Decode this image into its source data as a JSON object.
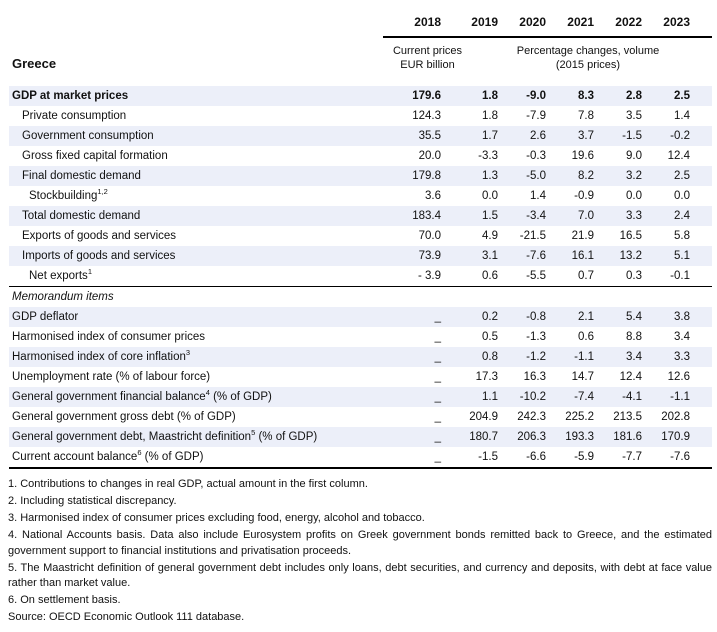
{
  "country_title": "Greece",
  "header": {
    "years": [
      "2018",
      "2019",
      "2020",
      "2021",
      "2022",
      "2023"
    ],
    "unit_first_col_line1": "Current prices",
    "unit_first_col_line2": "EUR billion",
    "unit_other_cols_line1": "Percentage changes, volume",
    "unit_other_cols_line2": "(2015 prices)"
  },
  "colors": {
    "row_shade": "#ECEFF9",
    "rule": "#000000"
  },
  "chart_data": {
    "type": "table",
    "title": "Greece",
    "columns": [
      "2018",
      "2019",
      "2020",
      "2021",
      "2022",
      "2023"
    ],
    "column_units": [
      "Current prices EUR billion",
      "Percentage changes, volume (2015 prices)"
    ],
    "rows": [
      {
        "label": "GDP at market prices",
        "sup": "",
        "label_after": "",
        "bold": true,
        "italic": false,
        "indent": 0,
        "shaded": true,
        "values": [
          "179.6",
          "1.8",
          "-9.0",
          "8.3",
          "2.8",
          "2.5"
        ]
      },
      {
        "label": "Private consumption",
        "sup": "",
        "label_after": "",
        "bold": false,
        "italic": false,
        "indent": 1,
        "shaded": false,
        "values": [
          "124.3",
          "1.8",
          "-7.9",
          "7.8",
          "3.5",
          "1.4"
        ]
      },
      {
        "label": "Government consumption",
        "sup": "",
        "label_after": "",
        "bold": false,
        "italic": false,
        "indent": 1,
        "shaded": true,
        "values": [
          "35.5",
          "1.7",
          "2.6",
          "3.7",
          "-1.5",
          "-0.2"
        ]
      },
      {
        "label": "Gross fixed capital formation",
        "sup": "",
        "label_after": "",
        "bold": false,
        "italic": false,
        "indent": 1,
        "shaded": false,
        "values": [
          "20.0",
          "-3.3",
          "-0.3",
          "19.6",
          "9.0",
          "12.4"
        ]
      },
      {
        "label": "Final domestic demand",
        "sup": "",
        "label_after": "",
        "bold": false,
        "italic": false,
        "indent": 1,
        "shaded": true,
        "values": [
          "179.8",
          "1.3",
          "-5.0",
          "8.2",
          "3.2",
          "2.5"
        ]
      },
      {
        "label": "Stockbuilding",
        "sup": "1,2",
        "label_after": "",
        "bold": false,
        "italic": false,
        "indent": 2,
        "shaded": false,
        "values": [
          "3.6",
          "0.0",
          "1.4",
          "-0.9",
          "0.0",
          "0.0"
        ]
      },
      {
        "label": "Total domestic demand",
        "sup": "",
        "label_after": "",
        "bold": false,
        "italic": false,
        "indent": 1,
        "shaded": true,
        "values": [
          "183.4",
          "1.5",
          "-3.4",
          "7.0",
          "3.3",
          "2.4"
        ]
      },
      {
        "label": "Exports of goods and services",
        "sup": "",
        "label_after": "",
        "bold": false,
        "italic": false,
        "indent": 1,
        "shaded": false,
        "values": [
          "70.0",
          "4.9",
          "-21.5",
          "21.9",
          "16.5",
          "5.8"
        ]
      },
      {
        "label": "Imports of goods and services",
        "sup": "",
        "label_after": "",
        "bold": false,
        "italic": false,
        "indent": 1,
        "shaded": true,
        "values": [
          "73.9",
          "3.1",
          "-7.6",
          "16.1",
          "13.2",
          "5.1"
        ]
      },
      {
        "label": "Net exports",
        "sup": "1",
        "label_after": "",
        "bold": false,
        "italic": false,
        "indent": 2,
        "shaded": false,
        "values": [
          "- 3.9",
          "0.6",
          "-5.5",
          "0.7",
          "0.3",
          "-0.1"
        ]
      }
    ],
    "memo_rows": [
      {
        "label": "Memorandum items",
        "sup": "",
        "label_after": "",
        "bold": false,
        "italic": true,
        "indent": 0,
        "shaded": false,
        "values": [
          "",
          "",
          "",
          "",
          "",
          ""
        ]
      },
      {
        "label": "GDP deflator",
        "sup": "",
        "label_after": "",
        "bold": false,
        "italic": false,
        "indent": 0,
        "shaded": true,
        "values": [
          "_",
          "0.2",
          "-0.8",
          "2.1",
          "5.4",
          "3.8"
        ]
      },
      {
        "label": "Harmonised index of consumer prices",
        "sup": "",
        "label_after": "",
        "bold": false,
        "italic": false,
        "indent": 0,
        "shaded": false,
        "values": [
          "_",
          "0.5",
          "-1.3",
          "0.6",
          "8.8",
          "3.4"
        ]
      },
      {
        "label": "Harmonised index of core inflation",
        "sup": "3",
        "label_after": "",
        "bold": false,
        "italic": false,
        "indent": 0,
        "shaded": true,
        "values": [
          "_",
          "0.8",
          "-1.2",
          "-1.1",
          "3.4",
          "3.3"
        ]
      },
      {
        "label": "Unemployment rate (% of labour force)",
        "sup": "",
        "label_after": "",
        "bold": false,
        "italic": false,
        "indent": 0,
        "shaded": false,
        "values": [
          "_",
          "17.3",
          "16.3",
          "14.7",
          "12.4",
          "12.6"
        ]
      },
      {
        "label": "General government financial balance",
        "sup": "4",
        "label_after": " (% of GDP)",
        "bold": false,
        "italic": false,
        "indent": 0,
        "shaded": true,
        "values": [
          "_",
          "1.1",
          "-10.2",
          "-7.4",
          "-4.1",
          "-1.1"
        ]
      },
      {
        "label": "General government gross debt (% of GDP)",
        "sup": "",
        "label_after": "",
        "bold": false,
        "italic": false,
        "indent": 0,
        "shaded": false,
        "values": [
          "_",
          "204.9",
          "242.3",
          "225.2",
          "213.5",
          "202.8"
        ]
      },
      {
        "label": "General government debt, Maastricht definition",
        "sup": "5",
        "label_after": " (% of GDP)",
        "bold": false,
        "italic": false,
        "indent": 0,
        "shaded": true,
        "values": [
          "_",
          "180.7",
          "206.3",
          "193.3",
          "181.6",
          "170.9"
        ]
      },
      {
        "label": "Current account balance",
        "sup": "6",
        "label_after": " (% of GDP)",
        "bold": false,
        "italic": false,
        "indent": 0,
        "shaded": false,
        "values": [
          "_",
          "-1.5",
          "-6.6",
          "-5.9",
          "-7.7",
          "-7.6"
        ]
      }
    ]
  },
  "footnotes": [
    "1. Contributions to changes in real GDP, actual amount in the first column.",
    "2. Including statistical discrepancy.",
    "3. Harmonised index of consumer prices excluding food, energy, alcohol and tobacco.",
    "4. National Accounts basis. Data also include Eurosystem profits on Greek government bonds remitted back to Greece, and the estimated government support to financial institutions and privatisation proceeds.",
    "5. The Maastricht definition of general government debt includes only loans, debt securities, and currency and deposits, with debt at face value rather than market value.",
    "6. On settlement basis."
  ],
  "source": "Source: OECD Economic Outlook 111 database."
}
